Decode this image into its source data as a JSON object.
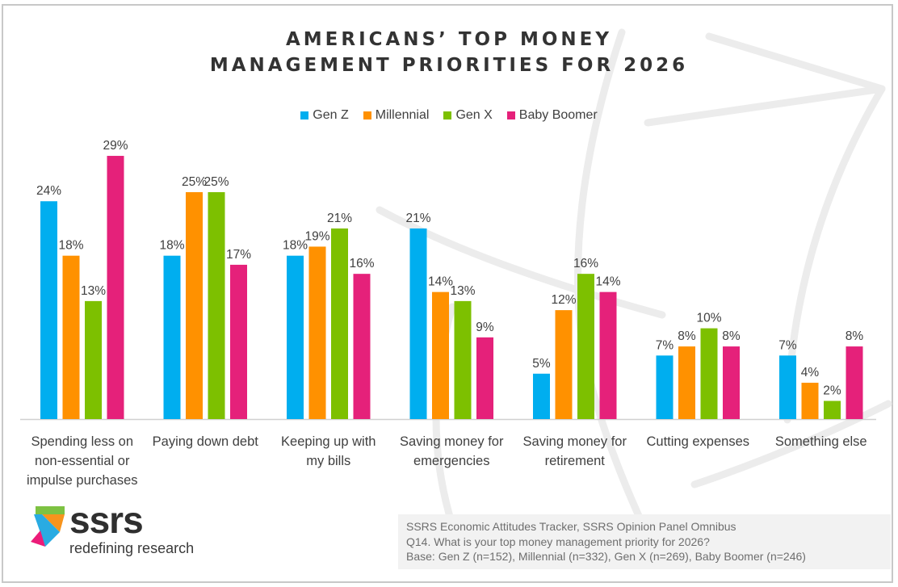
{
  "chart_data": {
    "type": "bar",
    "title_lines": [
      "AMERICANS’ TOP MONEY",
      "MANAGEMENT PRIORITIES FOR 2026"
    ],
    "title": "AMERICANS’ TOP MONEY MANAGEMENT PRIORITIES FOR 2026",
    "xlabel": "",
    "ylabel": "",
    "ylim": [
      0,
      30
    ],
    "grid": false,
    "legend_position": "top-center",
    "value_suffix": "%",
    "categories": [
      "Spending less on non-essential or impulse purchases",
      "Paying down debt",
      "Keeping up with my bills",
      "Saving money for emergencies",
      "Saving money for retirement",
      "Cutting expenses",
      "Something else"
    ],
    "category_label_lines": [
      [
        "Spending less on",
        "non-essential or",
        "impulse purchases"
      ],
      [
        "Paying down debt"
      ],
      [
        "Keeping up with",
        "my bills"
      ],
      [
        "Saving money for",
        "emergencies"
      ],
      [
        "Saving money for",
        "retirement"
      ],
      [
        "Cutting expenses"
      ],
      [
        "Something else"
      ]
    ],
    "series": [
      {
        "name": "Gen Z",
        "color": "#00aeef",
        "values": [
          24,
          18,
          18,
          21,
          5,
          7,
          7
        ]
      },
      {
        "name": "Millennial",
        "color": "#ff9100",
        "values": [
          18,
          25,
          19,
          14,
          12,
          8,
          4
        ]
      },
      {
        "name": "Gen X",
        "color": "#7dc000",
        "values": [
          13,
          25,
          21,
          13,
          16,
          10,
          2
        ]
      },
      {
        "name": "Baby Boomer",
        "color": "#e5217a",
        "values": [
          29,
          17,
          16,
          9,
          14,
          8,
          8
        ]
      }
    ]
  },
  "branding": {
    "logo_text": "ssrs",
    "tagline": "redefining research",
    "logo_colors": [
      "#7dc242",
      "#f7941d",
      "#29abe2",
      "#ec1c79"
    ]
  },
  "source_note": [
    "SSRS Economic Attitudes Tracker, SSRS Opinion Panel Omnibus",
    "Q14. What is your top money management priority for 2026?",
    "Base: Gen Z (n=152), Millennial (n=332), Gen X (n=269), Baby Boomer (n=246)"
  ]
}
